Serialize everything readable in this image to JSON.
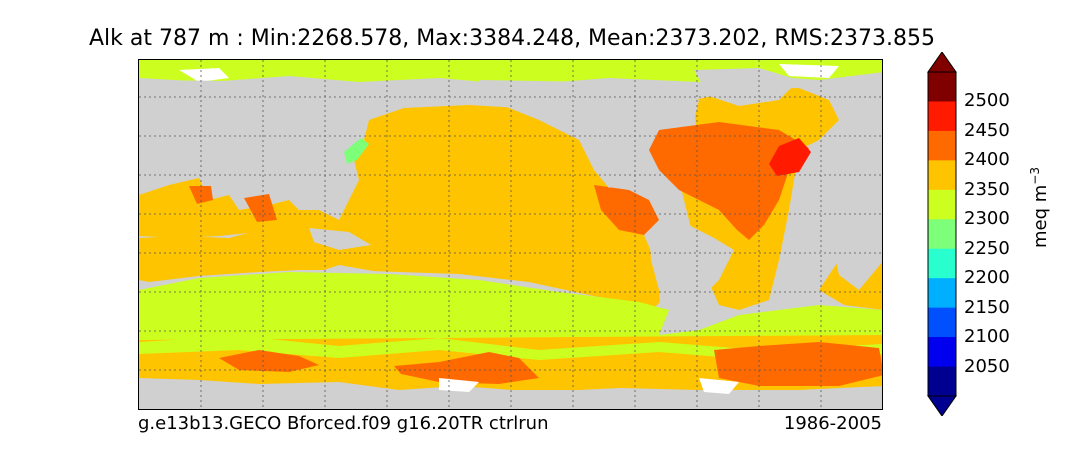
{
  "title": "Alk at 787 m : Min:2268.578, Max:3384.248, Mean:2373.202, RMS:2373.855",
  "footer": {
    "run_name": "g.e13b13.GECO Bforced.f09 g16.20TR ctrlrun",
    "period": "1986-2005"
  },
  "colorbar": {
    "unit_main": "meq m",
    "unit_exp": "−3",
    "ticks": [
      "2500",
      "2450",
      "2400",
      "2350",
      "2300",
      "2250",
      "2200",
      "2150",
      "2100",
      "2050"
    ],
    "colors_top_to_bottom": [
      "#800000",
      "#ff1a00",
      "#ff6a00",
      "#ffc400",
      "#ccff1f",
      "#7dff7a",
      "#29ffce",
      "#00b0ff",
      "#0050ff",
      "#0000ee",
      "#000090"
    ]
  },
  "palette": {
    "land": "#d0d0d0",
    "ice_nodata": "#ffffff",
    "c2250": "#7dff7a",
    "c2300": "#ccff1f",
    "c2350": "#ffc400",
    "c2400": "#ff6a00",
    "c2450": "#ff1a00"
  }
}
